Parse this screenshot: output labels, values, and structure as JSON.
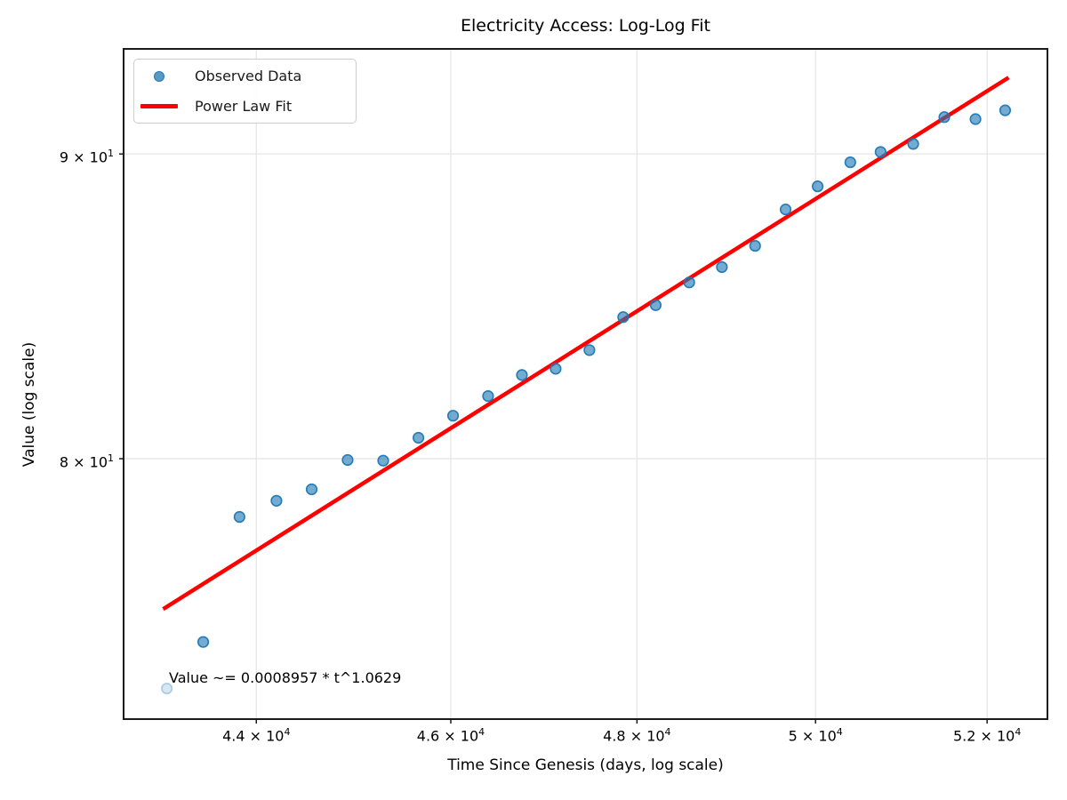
{
  "chart_data": {
    "type": "scatter",
    "title": "Electricity Access: Log-Log Fit",
    "xlabel": "Time Since Genesis (days, log scale)",
    "ylabel": "Value (log scale)",
    "xscale": "log",
    "yscale": "log",
    "xlim": [
      42685,
      52722
    ],
    "ylim": [
      72.34,
      93.73
    ],
    "grid": true,
    "legend_position": "upper left",
    "x_ticks": [
      {
        "value": 44000,
        "label": "4.4 × 10^4"
      },
      {
        "value": 46000,
        "label": "4.6 × 10^4"
      },
      {
        "value": 48000,
        "label": "4.8 × 10^4"
      },
      {
        "value": 50000,
        "label": "5 × 10^4"
      },
      {
        "value": 52000,
        "label": "5.2 × 10^4"
      }
    ],
    "y_ticks": [
      {
        "value": 80,
        "label": "8 × 10^1"
      },
      {
        "value": 90,
        "label": "9 × 10^1"
      }
    ],
    "series": [
      {
        "name": "Observed Data",
        "type": "scatter",
        "color": "#1f77b4",
        "alpha": 0.7,
        "first_point_alpha": 0.18,
        "points": [
          [
            43109,
            73.2
          ],
          [
            43469,
            74.53
          ],
          [
            43831,
            78.22
          ],
          [
            44203,
            78.71
          ],
          [
            44560,
            79.06
          ],
          [
            44928,
            79.96
          ],
          [
            45295,
            79.94
          ],
          [
            45661,
            80.65
          ],
          [
            46024,
            81.34
          ],
          [
            46394,
            81.96
          ],
          [
            46754,
            82.63
          ],
          [
            47116,
            82.83
          ],
          [
            47481,
            83.43
          ],
          [
            47849,
            84.5
          ],
          [
            48206,
            84.89
          ],
          [
            48577,
            85.64
          ],
          [
            48941,
            86.15
          ],
          [
            49314,
            86.86
          ],
          [
            49659,
            88.09
          ],
          [
            50024,
            88.88
          ],
          [
            50399,
            89.71
          ],
          [
            50749,
            90.07
          ],
          [
            51129,
            90.35
          ],
          [
            51494,
            91.29
          ],
          [
            51862,
            91.22
          ],
          [
            52215,
            91.53
          ]
        ]
      },
      {
        "name": "Power Law Fit",
        "type": "line",
        "color": "#ff0000",
        "coefficient": 0.0008957,
        "exponent": 1.0629,
        "x_range": [
          43089,
          52236
        ]
      }
    ],
    "annotation": "Value ~= 0.0008957 * t^1.0629"
  },
  "legend": {
    "items": [
      {
        "label": "Observed Data",
        "marker": "dot"
      },
      {
        "label": "Power Law Fit",
        "marker": "line"
      }
    ]
  },
  "colors": {
    "scatter": "#1f77b4",
    "fit_line": "#ff0000",
    "grid": "#e4e4e4",
    "spine": "#1a1a1a",
    "text": "#000000"
  }
}
